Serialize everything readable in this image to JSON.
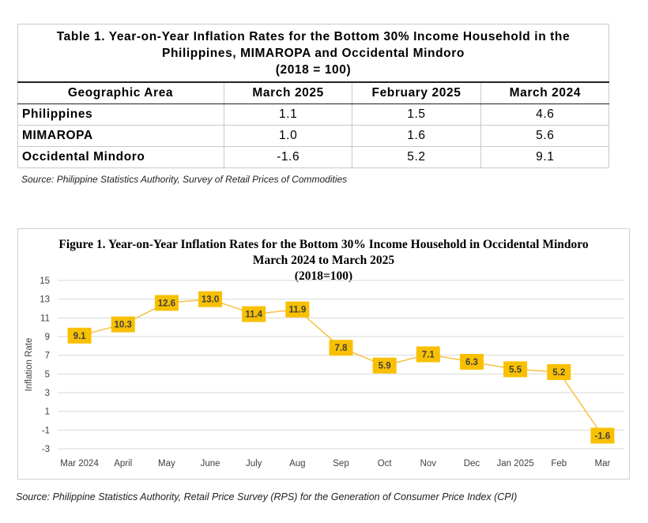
{
  "table": {
    "title_line1": "Table 1. Year-on-Year Inflation Rates for the Bottom 30% Income Household in the",
    "title_line2": "Philippines, MIMAROPA and Occidental Mindoro",
    "title_line3": "(2018 = 100)",
    "headers": [
      "Geographic Area",
      "March 2025",
      "February 2025",
      "March 2024"
    ],
    "rows": [
      {
        "area": "Philippines",
        "values": [
          "1.1",
          "1.5",
          "4.6"
        ]
      },
      {
        "area": "MIMAROPA",
        "values": [
          "1.0",
          "1.6",
          "5.6"
        ]
      },
      {
        "area": "Occidental Mindoro",
        "values": [
          "-1.6",
          "5.2",
          "9.1"
        ]
      }
    ],
    "source": "Source: Philippine Statistics Authority, Survey of Retail Prices of Commodities"
  },
  "chart_data": {
    "type": "line",
    "title_line1": "Figure 1. Year-on-Year Inflation Rates for the Bottom 30% Income Household in Occidental Mindoro",
    "title_line2": "March 2024 to March 2025",
    "title_line3": "(2018=100)",
    "ylabel": "Inflation Rate",
    "xlabel": "",
    "categories": [
      "Mar 2024",
      "April",
      "May",
      "June",
      "July",
      "Aug",
      "Sep",
      "Oct",
      "Nov",
      "Dec",
      "Jan 2025",
      "Feb",
      "Mar"
    ],
    "values": [
      9.1,
      10.3,
      12.6,
      13.0,
      11.4,
      11.9,
      7.8,
      5.9,
      7.1,
      6.3,
      5.5,
      5.2,
      -1.6
    ],
    "labels": [
      "9.1",
      "10.3",
      "12.6",
      "13.0",
      "11.4",
      "11.9",
      "7.8",
      "5.9",
      "7.1",
      "6.3",
      "5.5",
      "5.2",
      "-1.6"
    ],
    "ylim": [
      -3,
      15
    ],
    "yticks": [
      -3,
      -1,
      1,
      3,
      5,
      7,
      9,
      11,
      13,
      15
    ],
    "grid": true,
    "legend": "none",
    "line_color": "#f5c242",
    "label_fill": "#f8c000",
    "grid_color": "#d9d9d9"
  },
  "chart_source": "Source: Philippine Statistics Authority, Retail Price Survey (RPS) for the Generation of Consumer Price Index (CPI)"
}
